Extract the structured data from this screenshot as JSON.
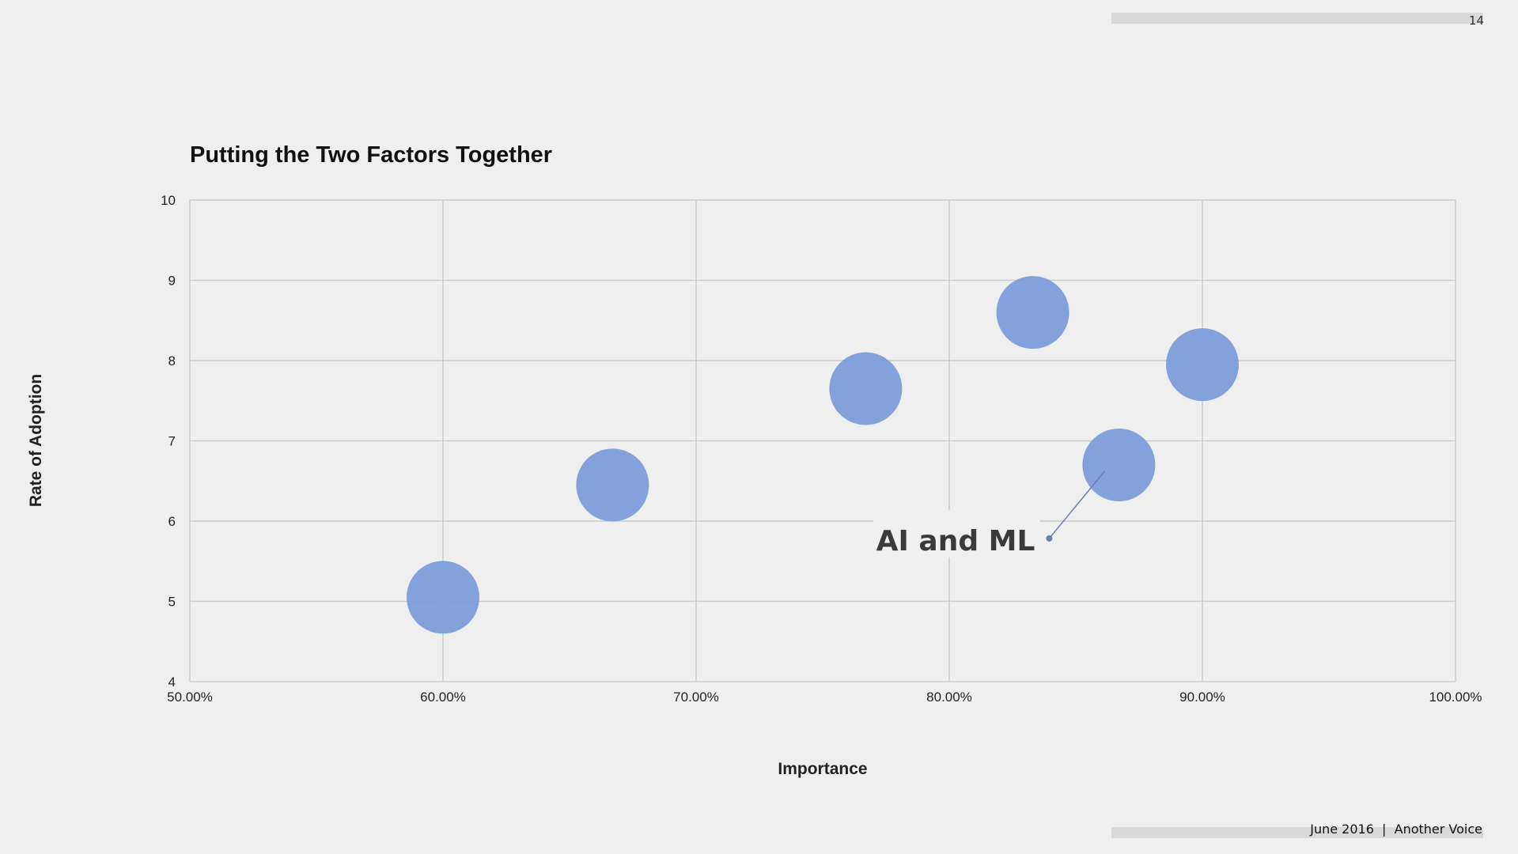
{
  "slide": {
    "page_number": "14",
    "footer": "June 2016  |  Another Voice"
  },
  "chart_data": {
    "type": "scatter",
    "subtype": "bubble",
    "title": "Putting the Two Factors Together",
    "xlabel": "Importance",
    "ylabel": "Rate of Adoption",
    "xlim": [
      50,
      100
    ],
    "ylim": [
      4,
      10
    ],
    "x_ticks": [
      "50.00%",
      "60.00%",
      "70.00%",
      "80.00%",
      "90.00%",
      "100.00%"
    ],
    "y_ticks": [
      "4",
      "5",
      "6",
      "7",
      "8",
      "9",
      "10"
    ],
    "grid": true,
    "bubble_color": "#7a9ad9",
    "points": [
      {
        "x": 60.0,
        "y": 5.05
      },
      {
        "x": 66.7,
        "y": 6.45
      },
      {
        "x": 76.7,
        "y": 7.65
      },
      {
        "x": 83.3,
        "y": 8.6
      },
      {
        "x": 86.7,
        "y": 6.7
      },
      {
        "x": 90.0,
        "y": 7.95
      }
    ],
    "annotations": [
      {
        "text": "AI and ML",
        "point_index": 4
      }
    ]
  }
}
